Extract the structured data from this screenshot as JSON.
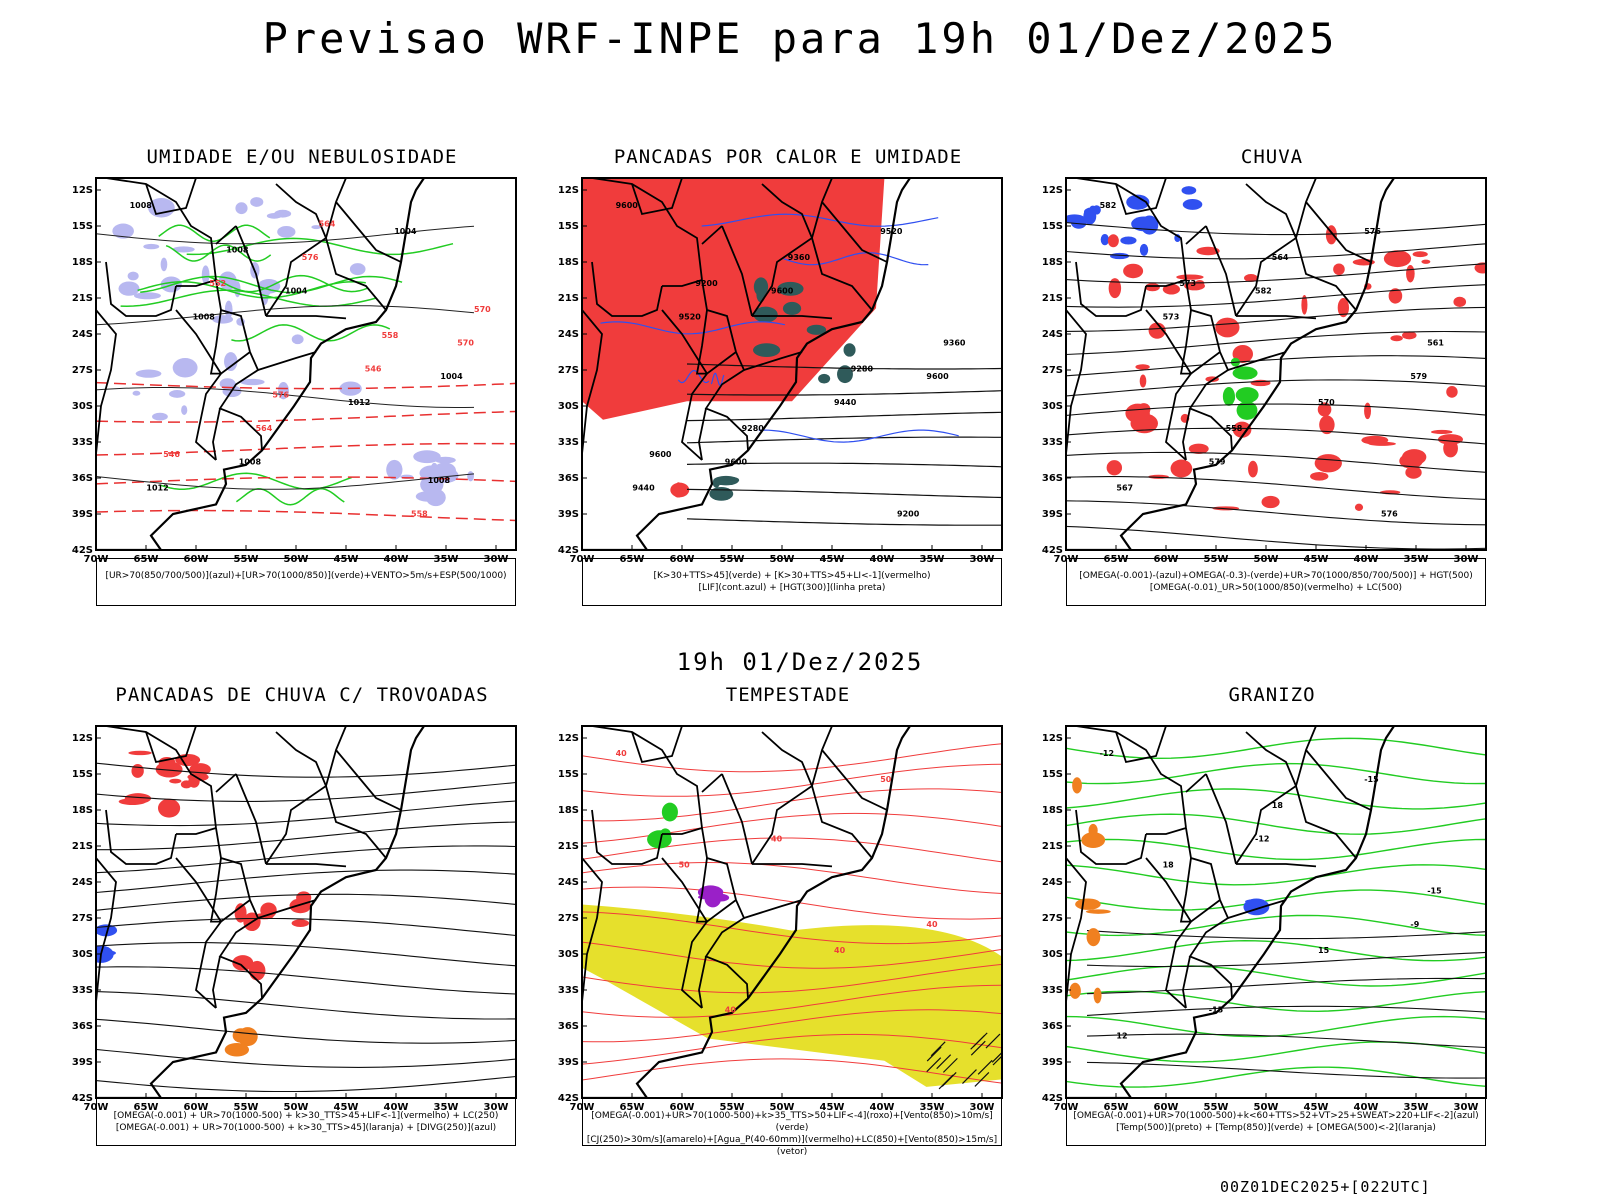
{
  "header": {
    "title": "Previsao WRF-INPE  para 19h 01/Dez/2025",
    "mid_time": "19h 01/Dez/2025",
    "footer": "00Z01DEC2025+[022UTC]"
  },
  "axes": {
    "lat_labels": [
      "12S",
      "15S",
      "18S",
      "21S",
      "24S",
      "27S",
      "30S",
      "33S",
      "36S",
      "39S",
      "42S"
    ],
    "lon_labels": [
      "70W",
      "65W",
      "60W",
      "55W",
      "50W",
      "45W",
      "40W",
      "35W",
      "30W"
    ]
  },
  "panels": [
    {
      "title": "UMIDADE E/OU NEBULOSIDADE",
      "legend": [
        "[UR>70(850/700/500)](azul)+[UR>70(1000/850)](verde)+VENTO>5m/s+ESP(500/1000)"
      ],
      "contour_labels": [
        "1008",
        "1004",
        "1004",
        "1008",
        "1004",
        "1008",
        "1012",
        "1012",
        "576",
        "570",
        "564",
        "558",
        "552",
        "546",
        "546",
        "564",
        "570",
        "576",
        "1008",
        "1008",
        "558"
      ]
    },
    {
      "title": "PANCADAS POR CALOR E UMIDADE",
      "legend": [
        "[K>30+TTS>45](verde) + [K>30+TTS>45+LI<-1](vermelho)",
        "[LIF](cont.azul) + [HGT(300)](linha preta)"
      ],
      "contour_labels": [
        "9600",
        "9600",
        "9600",
        "9600",
        "9520",
        "9520",
        "9440",
        "9440",
        "9360",
        "9360",
        "9280",
        "9200",
        "9200",
        "9280",
        "9600"
      ]
    },
    {
      "title": "CHUVA",
      "legend": [
        "[OMEGA(-0.001)-(azul)+OMEGA(-0.3)-(verde)+UR>70(1000/850/700/500)] + HGT(500)",
        "[OMEGA(-0.01)_UR>50(1000/850)(vermelho) + LC(500)"
      ],
      "contour_labels": [
        "582",
        "582",
        "579",
        "579",
        "576",
        "573",
        "570",
        "567",
        "564",
        "561",
        "558",
        "576",
        "573"
      ]
    },
    {
      "title": "PANCADAS DE CHUVA C/ TROVOADAS",
      "legend": [
        "[OMEGA(-0.001) + UR>70(1000-500) + k>30_TTS>45+LIF<-1](vermelho) + LC(250)",
        "[OMEGA(-0.001) + UR>70(1000-500) + k>30_TTS>45](laranja) + [DIVG(250)](azul)"
      ],
      "contour_labels": []
    },
    {
      "title": "TEMPESTADE",
      "legend": [
        "[OMEGA(-0.001)+UR>70(1000-500)+k>35_TTS>50+LIF<-4](roxo)+[Vento(850)>10m/s](verde)",
        "[CJ(250)>30m/s](amarelo)+[Agua_P(40-60mm)](vermelho)+LC(850)+[Vento(850)>15m/s](vetor)"
      ],
      "contour_labels": [
        "40",
        "40",
        "40",
        "40",
        "50",
        "50",
        "40"
      ]
    },
    {
      "title": "GRANIZO",
      "legend": [
        "[OMEGA(-0.001)+UR>70(1000-500)+k<60+TTS>52+VT>25+SWEAT>220+LIF<-2](azul)",
        "[Temp(500)](preto) + [Temp(850)](verde) + [OMEGA(500)<-2](laranja)"
      ],
      "contour_labels": [
        "-12",
        "-12",
        "-9",
        "-15",
        "-15",
        "18",
        "15",
        "12",
        "18",
        "-15"
      ]
    }
  ],
  "colors": {
    "blue_shade": "#b8b8f0",
    "green": "#22cc22",
    "red": "#f03c3c",
    "red_dash": "#e83030",
    "blue": "#3050f0",
    "dark_teal": "#2f5a5a",
    "yellow": "#e6e02c",
    "orange": "#f08020",
    "purple": "#9a20c8"
  }
}
